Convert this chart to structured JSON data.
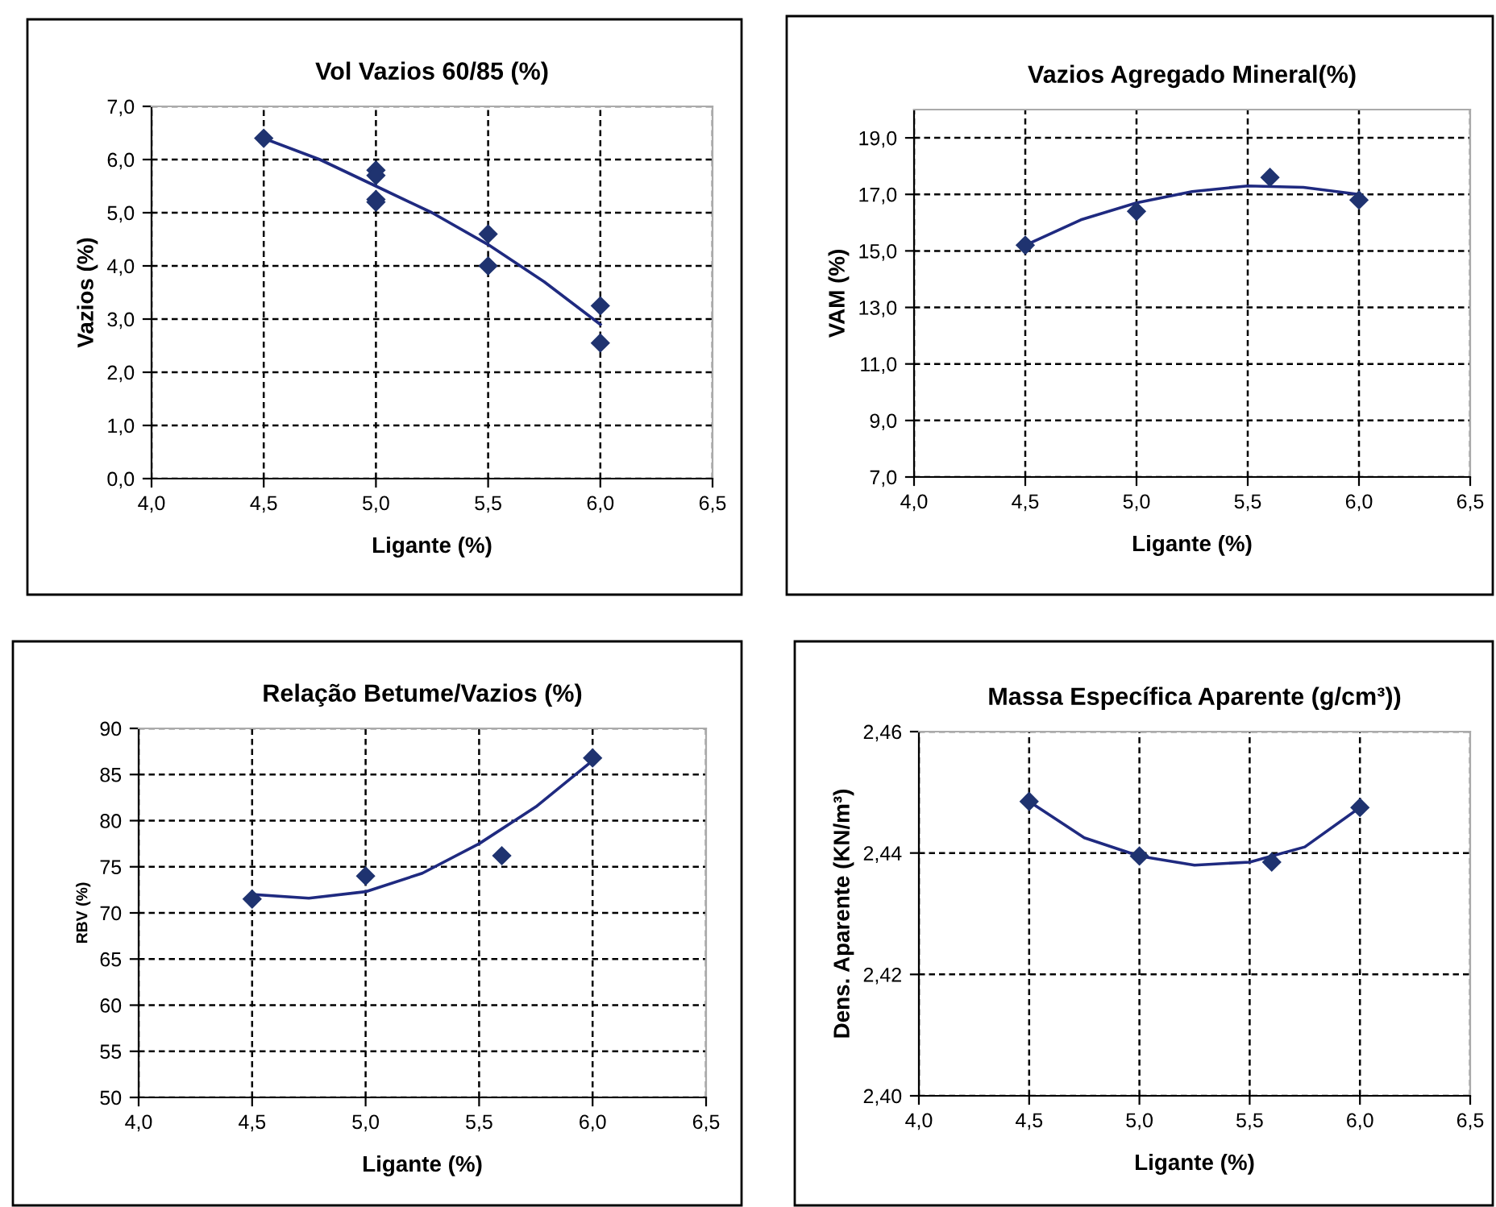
{
  "chart_data": [
    {
      "type": "scatter",
      "title": "Vol Vazios 60/85 (%)",
      "xlabel": "Ligante (%)",
      "ylabel": "Vazios (%)",
      "grid": true,
      "legend": false,
      "line_style": "dashed",
      "xlim": [
        4.0,
        6.5
      ],
      "xticks": [
        {
          "value": 4.0,
          "label": "4,0"
        },
        {
          "value": 4.5,
          "label": "4,5"
        },
        {
          "value": 5.0,
          "label": "5,0"
        },
        {
          "value": 5.5,
          "label": "5,5"
        },
        {
          "value": 6.0,
          "label": "6,0"
        },
        {
          "value": 6.5,
          "label": "6,5"
        }
      ],
      "ylim": [
        0.0,
        7.0
      ],
      "yticks": [
        {
          "value": 0.0,
          "label": "0,0"
        },
        {
          "value": 1.0,
          "label": "1,0"
        },
        {
          "value": 2.0,
          "label": "2,0"
        },
        {
          "value": 3.0,
          "label": "3,0"
        },
        {
          "value": 4.0,
          "label": "4,0"
        },
        {
          "value": 5.0,
          "label": "5,0"
        },
        {
          "value": 6.0,
          "label": "6,0"
        },
        {
          "value": 7.0,
          "label": "7,0"
        }
      ],
      "series": [
        {
          "marker": "diamond",
          "color": "#1f3370",
          "x": [
            4.5,
            5.0,
            5.0,
            5.0,
            5.0,
            5.5,
            5.5,
            6.0,
            6.0
          ],
          "values": [
            6.4,
            5.8,
            5.7,
            5.25,
            5.2,
            4.6,
            4.0,
            3.25,
            2.55
          ]
        },
        {
          "type": "line",
          "marker": "none",
          "line_style": "solid",
          "color": "#1f2a80",
          "x": [
            4.5,
            4.75,
            5.0,
            5.25,
            5.5,
            5.75,
            6.0
          ],
          "values": [
            6.4,
            6.0,
            5.5,
            5.0,
            4.4,
            3.7,
            2.9
          ]
        }
      ]
    },
    {
      "type": "scatter",
      "title": "Vazios Agregado Mineral(%)",
      "xlabel": "Ligante (%)",
      "ylabel": "VAM (%)",
      "grid": true,
      "legend": false,
      "line_style": "dashed",
      "xlim": [
        4.0,
        6.5
      ],
      "xticks": [
        {
          "value": 4.0,
          "label": "4,0"
        },
        {
          "value": 4.5,
          "label": "4,5"
        },
        {
          "value": 5.0,
          "label": "5,0"
        },
        {
          "value": 5.5,
          "label": "5,5"
        },
        {
          "value": 6.0,
          "label": "6,0"
        },
        {
          "value": 6.5,
          "label": "6,5"
        }
      ],
      "ylim": [
        7.0,
        20.0
      ],
      "yticks": [
        {
          "value": 7.0,
          "label": "7,0"
        },
        {
          "value": 9.0,
          "label": "9,0"
        },
        {
          "value": 11.0,
          "label": "11,0"
        },
        {
          "value": 13.0,
          "label": "13,0"
        },
        {
          "value": 15.0,
          "label": "15,0"
        },
        {
          "value": 17.0,
          "label": "17,0"
        },
        {
          "value": 19.0,
          "label": "19,0"
        }
      ],
      "series": [
        {
          "marker": "diamond",
          "color": "#1f3370",
          "x": [
            4.5,
            5.0,
            5.6,
            6.0
          ],
          "values": [
            15.2,
            16.4,
            17.6,
            16.8
          ]
        },
        {
          "type": "line",
          "marker": "none",
          "line_style": "solid",
          "color": "#1f2a80",
          "x": [
            4.5,
            4.75,
            5.0,
            5.25,
            5.5,
            5.75,
            6.0
          ],
          "values": [
            15.2,
            16.1,
            16.7,
            17.1,
            17.3,
            17.25,
            17.0
          ]
        }
      ]
    },
    {
      "type": "scatter",
      "title": "Relação Betume/Vazios (%)",
      "xlabel": "Ligante (%)",
      "ylabel": "RBV (%)",
      "grid": true,
      "legend": false,
      "line_style": "dashed",
      "xlim": [
        4.0,
        6.5
      ],
      "xticks": [
        {
          "value": 4.0,
          "label": "4,0"
        },
        {
          "value": 4.5,
          "label": "4,5"
        },
        {
          "value": 5.0,
          "label": "5,0"
        },
        {
          "value": 5.5,
          "label": "5,5"
        },
        {
          "value": 6.0,
          "label": "6,0"
        },
        {
          "value": 6.5,
          "label": "6,5"
        }
      ],
      "ylim": [
        50,
        90
      ],
      "yticks": [
        50,
        55,
        60,
        65,
        70,
        75,
        80,
        85,
        90
      ],
      "series": [
        {
          "marker": "diamond",
          "color": "#1f3370",
          "x": [
            4.5,
            5.0,
            5.6,
            6.0
          ],
          "values": [
            71.5,
            74.0,
            76.2,
            86.8
          ]
        },
        {
          "type": "line",
          "marker": "none",
          "line_style": "solid",
          "color": "#1f2a80",
          "x": [
            4.5,
            4.75,
            5.0,
            5.25,
            5.5,
            5.75,
            6.0
          ],
          "values": [
            72.0,
            71.6,
            72.3,
            74.3,
            77.5,
            81.5,
            86.5
          ]
        }
      ]
    },
    {
      "type": "scatter",
      "title": "Massa Específica Aparente (g/cm³))",
      "xlabel": "Ligante (%)",
      "ylabel": "Dens. Aparente (KN/m³)",
      "grid": true,
      "legend": false,
      "line_style": "dashed",
      "xlim": [
        4.0,
        6.5
      ],
      "xticks": [
        {
          "value": 4.0,
          "label": "4,0"
        },
        {
          "value": 4.5,
          "label": "4,5"
        },
        {
          "value": 5.0,
          "label": "5,0"
        },
        {
          "value": 5.5,
          "label": "5,5"
        },
        {
          "value": 6.0,
          "label": "6,0"
        },
        {
          "value": 6.5,
          "label": "6,5"
        }
      ],
      "ylim": [
        2.4,
        2.46
      ],
      "yticks": [
        {
          "value": 2.4,
          "label": "2,40"
        },
        {
          "value": 2.42,
          "label": "2,42"
        },
        {
          "value": 2.44,
          "label": "2,44"
        },
        {
          "value": 2.46,
          "label": "2,46"
        }
      ],
      "series": [
        {
          "marker": "diamond",
          "color": "#1f3370",
          "x": [
            4.5,
            5.0,
            5.6,
            6.0
          ],
          "values": [
            2.4485,
            2.4395,
            2.4385,
            2.4475
          ]
        },
        {
          "type": "line",
          "marker": "none",
          "line_style": "solid",
          "color": "#1f2a80",
          "x": [
            4.5,
            4.75,
            5.0,
            5.25,
            5.5,
            5.75,
            6.0
          ],
          "values": [
            2.4485,
            2.4425,
            2.4395,
            2.438,
            2.4385,
            2.441,
            2.4475
          ]
        }
      ]
    }
  ]
}
